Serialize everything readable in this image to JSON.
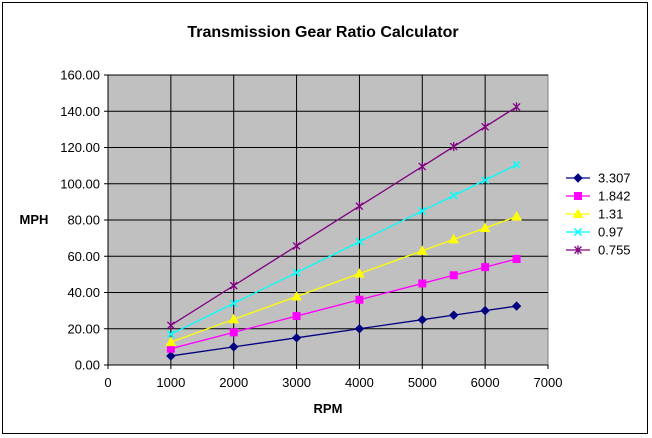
{
  "chart_data": {
    "type": "line",
    "title": "Transmission Gear Ratio Calculator",
    "xlabel": "RPM",
    "ylabel": "MPH",
    "xlim": [
      0,
      7000
    ],
    "ylim": [
      0,
      160
    ],
    "xticks": [
      0,
      1000,
      2000,
      3000,
      4000,
      5000,
      6000,
      7000
    ],
    "yticks": [
      0,
      20,
      40,
      60,
      80,
      100,
      120,
      140,
      160
    ],
    "xtick_labels": [
      "0",
      "1000",
      "2000",
      "3000",
      "4000",
      "5000",
      "6000",
      "7000"
    ],
    "ytick_labels": [
      "0.00",
      "20.00",
      "40.00",
      "60.00",
      "80.00",
      "100.00",
      "120.00",
      "140.00",
      "160.00"
    ],
    "grid": true,
    "plot_background": "#c0c0c0",
    "legend_position": "right",
    "x": [
      1000,
      2000,
      3000,
      4000,
      5000,
      5500,
      6000,
      6500
    ],
    "series": [
      {
        "name": "3.307",
        "color": "#000080",
        "marker": "diamond",
        "values": [
          5.0,
          10.0,
          15.0,
          20.0,
          25.0,
          27.5,
          30.0,
          32.5
        ]
      },
      {
        "name": "1.842",
        "color": "#ff00ff",
        "marker": "square",
        "values": [
          9.0,
          18.0,
          27.0,
          36.0,
          45.0,
          49.5,
          54.0,
          58.5
        ]
      },
      {
        "name": "1.31",
        "color": "#ffff00",
        "marker": "triangle",
        "values": [
          12.6,
          25.2,
          37.8,
          50.4,
          63.0,
          69.3,
          75.6,
          81.9
        ]
      },
      {
        "name": "0.97",
        "color": "#00ffff",
        "marker": "x",
        "values": [
          17.0,
          34.0,
          51.0,
          68.0,
          85.0,
          93.5,
          102.0,
          110.5
        ]
      },
      {
        "name": "0.755",
        "color": "#800080",
        "marker": "star",
        "values": [
          21.9,
          43.8,
          65.7,
          87.6,
          109.5,
          120.5,
          131.4,
          142.4
        ]
      }
    ]
  }
}
